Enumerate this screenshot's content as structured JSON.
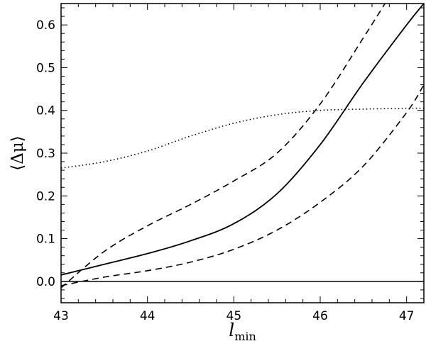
{
  "chart_data": {
    "type": "line",
    "xlabel": "l",
    "xlabel_subscript": "min",
    "ylabel": "⟨Δμ⟩",
    "xlim": [
      43.0,
      47.2
    ],
    "ylim": [
      -0.05,
      0.65
    ],
    "xticks": [
      43,
      44,
      45,
      46,
      47
    ],
    "xtick_labels": [
      "43",
      "44",
      "45",
      "46",
      "47"
    ],
    "yticks": [
      0.0,
      0.1,
      0.2,
      0.3,
      0.4,
      0.5,
      0.6
    ],
    "ytick_labels": [
      "0.0",
      "0.1",
      "0.2",
      "0.3",
      "0.4",
      "0.5",
      "0.6"
    ],
    "grid": false,
    "series": [
      {
        "style": "solid",
        "x": [
          43.0,
          43.5,
          44.0,
          44.5,
          45.0,
          45.5,
          46.0,
          46.5,
          47.0,
          47.2
        ],
        "y": [
          0.015,
          0.04,
          0.065,
          0.095,
          0.135,
          0.205,
          0.32,
          0.465,
          0.6,
          0.65
        ]
      },
      {
        "style": "dashed",
        "x": [
          43.0,
          43.5,
          44.0,
          44.5,
          45.0,
          45.5,
          46.0,
          46.5,
          46.75
        ],
        "y": [
          -0.015,
          0.07,
          0.13,
          0.18,
          0.235,
          0.3,
          0.415,
          0.57,
          0.65
        ]
      },
      {
        "style": "dashed",
        "x": [
          43.0,
          43.5,
          44.0,
          44.5,
          45.0,
          45.5,
          46.0,
          46.5,
          47.0,
          47.2
        ],
        "y": [
          -0.01,
          0.01,
          0.025,
          0.045,
          0.075,
          0.12,
          0.185,
          0.27,
          0.395,
          0.46
        ]
      },
      {
        "style": "dotted",
        "x": [
          43.0,
          43.5,
          44.0,
          44.5,
          45.0,
          45.5,
          46.0,
          46.5,
          47.0,
          47.2
        ],
        "y": [
          0.265,
          0.28,
          0.305,
          0.34,
          0.37,
          0.39,
          0.4,
          0.403,
          0.405,
          0.405
        ]
      },
      {
        "style": "solid-thin",
        "x": [
          43.0,
          47.2
        ],
        "y": [
          0.0,
          0.0
        ]
      }
    ]
  }
}
